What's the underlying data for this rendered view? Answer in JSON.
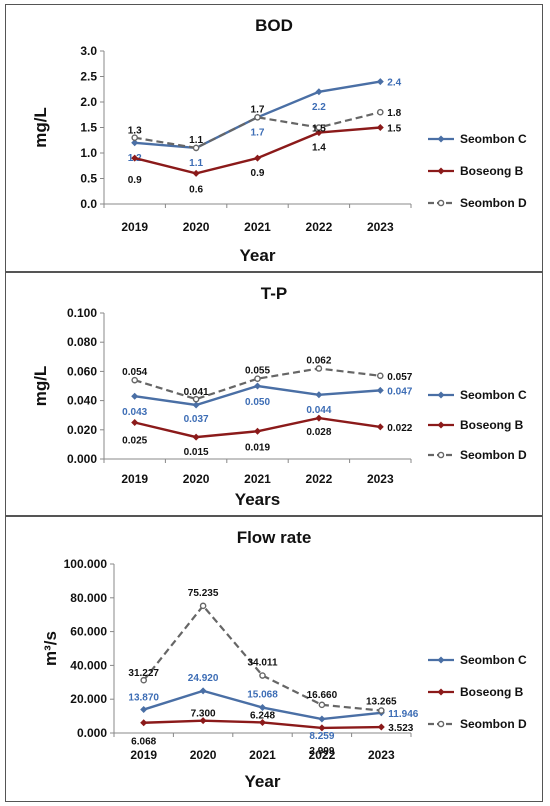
{
  "charts": {
    "bod": {
      "chart_data": {
        "type": "line",
        "title": "BOD",
        "xlabel": "Year",
        "ylabel": "mg/L",
        "categories": [
          "2019",
          "2020",
          "2021",
          "2022",
          "2023"
        ],
        "ylim": [
          0,
          3.0
        ],
        "yticks": [
          "0.0",
          "0.5",
          "1.0",
          "1.5",
          "2.0",
          "2.5",
          "3.0"
        ],
        "series": [
          {
            "name": "Seombon C",
            "values": [
              1.2,
              1.1,
              1.7,
              2.2,
              2.4
            ],
            "labels": [
              "1.2",
              "1.1",
              "1.7",
              "2.2",
              "2.4"
            ],
            "color": "#4a6fa5",
            "dash": false
          },
          {
            "name": "Boseong B",
            "values": [
              0.9,
              0.6,
              0.9,
              1.4,
              1.5
            ],
            "labels": [
              "0.9",
              "0.6",
              "0.9",
              "1.4",
              "1.5"
            ],
            "color": "#8b1a1a",
            "dash": false
          },
          {
            "name": "Seombon D",
            "values": [
              1.3,
              1.1,
              1.7,
              1.5,
              1.8
            ],
            "labels": [
              "1.3",
              "1.1",
              "1.7",
              "1.5",
              "1.8"
            ],
            "color": "#666666",
            "dash": true
          }
        ],
        "grid": false,
        "legend": "right"
      }
    },
    "tp": {
      "chart_data": {
        "type": "line",
        "title": "T-P",
        "xlabel": "Years",
        "ylabel": "mg/L",
        "categories": [
          "2019",
          "2020",
          "2021",
          "2022",
          "2023"
        ],
        "ylim": [
          0,
          0.1
        ],
        "yticks": [
          "0.000",
          "0.020",
          "0.040",
          "0.060",
          "0.080",
          "0.100"
        ],
        "series": [
          {
            "name": "Seombon C",
            "values": [
              0.043,
              0.037,
              0.05,
              0.044,
              0.047
            ],
            "labels": [
              "0.043",
              "0.037",
              "0.050",
              "0.044",
              "0.047"
            ],
            "color": "#4a6fa5",
            "dash": false
          },
          {
            "name": "Boseong B",
            "values": [
              0.025,
              0.015,
              0.019,
              0.028,
              0.022
            ],
            "labels": [
              "0.025",
              "0.015",
              "0.019",
              "0.028",
              "0.022"
            ],
            "color": "#8b1a1a",
            "dash": false
          },
          {
            "name": "Seombon D",
            "values": [
              0.054,
              0.041,
              0.055,
              0.062,
              0.057
            ],
            "labels": [
              "0.054",
              "0.041",
              "0.055",
              "0.062",
              "0.057"
            ],
            "color": "#666666",
            "dash": true
          }
        ],
        "grid": false,
        "legend": "right"
      }
    },
    "flow": {
      "chart_data": {
        "type": "line",
        "title": "Flow rate",
        "xlabel": "Year",
        "ylabel": "m³/s",
        "categories": [
          "2019",
          "2020",
          "2021",
          "2022",
          "2023"
        ],
        "ylim": [
          0,
          100
        ],
        "yticks": [
          "0.000",
          "20.000",
          "40.000",
          "60.000",
          "80.000",
          "100.000"
        ],
        "series": [
          {
            "name": "Seombon C",
            "values": [
              13.87,
              24.92,
              15.068,
              8.259,
              11.946
            ],
            "labels": [
              "13.870",
              "24.920",
              "15.068",
              "8.259",
              "11.946"
            ],
            "color": "#4a6fa5",
            "dash": false
          },
          {
            "name": "Boseong B",
            "values": [
              6.068,
              7.3,
              6.248,
              2.999,
              3.523
            ],
            "labels": [
              "6.068",
              "7.300",
              "6.248",
              "2.999",
              "3.523"
            ],
            "color": "#8b1a1a",
            "dash": false
          },
          {
            "name": "Seombon D",
            "values": [
              31.227,
              75.235,
              34.011,
              16.66,
              13.265
            ],
            "labels": [
              "31.227",
              "75.235",
              "34.011",
              "16.660",
              "13.265"
            ],
            "color": "#666666",
            "dash": true
          }
        ],
        "grid": false,
        "legend": "right"
      }
    }
  }
}
